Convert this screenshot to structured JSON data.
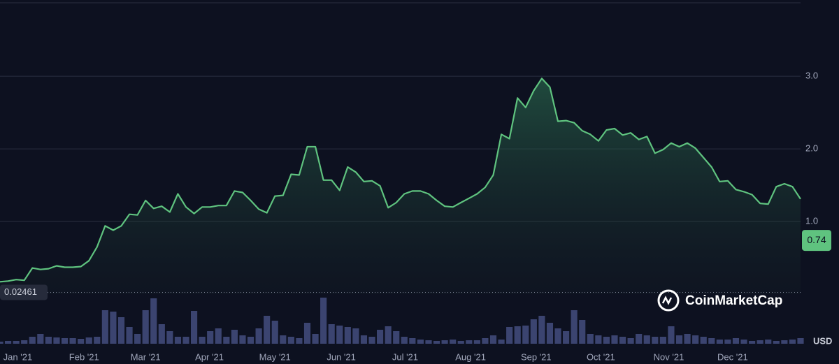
{
  "chart_data": {
    "type": "line",
    "x": [
      0,
      1,
      2,
      3,
      4,
      5,
      6,
      7,
      8,
      9,
      10,
      11,
      12,
      13,
      14,
      15,
      16,
      17,
      18,
      19,
      20,
      21,
      22,
      23,
      24,
      25,
      26,
      27,
      28,
      29,
      30,
      31,
      32,
      33,
      34,
      35,
      36,
      37,
      38,
      39,
      40,
      41,
      42,
      43,
      44,
      45,
      46,
      47,
      48,
      49,
      50,
      51,
      52,
      53,
      54,
      55,
      56,
      57,
      58,
      59,
      60,
      61,
      62,
      63,
      64,
      65,
      66,
      67,
      68,
      69,
      70,
      71,
      72,
      73,
      74,
      75,
      76,
      77,
      78,
      79,
      80,
      81,
      82,
      83,
      84,
      85,
      86,
      87,
      88,
      89,
      90,
      91,
      92,
      93,
      94,
      95,
      96,
      97,
      98,
      99
    ],
    "values": [
      0.17,
      0.18,
      0.2,
      0.19,
      0.36,
      0.34,
      0.35,
      0.39,
      0.37,
      0.37,
      0.38,
      0.46,
      0.65,
      0.94,
      0.88,
      0.94,
      1.1,
      1.09,
      1.29,
      1.18,
      1.21,
      1.13,
      1.38,
      1.2,
      1.11,
      1.2,
      1.2,
      1.22,
      1.22,
      1.42,
      1.4,
      1.29,
      1.17,
      1.12,
      1.35,
      1.36,
      1.65,
      1.64,
      2.03,
      2.03,
      1.57,
      1.57,
      1.43,
      1.75,
      1.68,
      1.55,
      1.56,
      1.49,
      1.19,
      1.26,
      1.38,
      1.42,
      1.42,
      1.38,
      1.29,
      1.21,
      1.2,
      1.26,
      1.32,
      1.38,
      1.47,
      1.64,
      2.2,
      2.14,
      2.7,
      2.57,
      2.8,
      2.97,
      2.85,
      2.38,
      2.39,
      2.36,
      2.25,
      2.2,
      2.11,
      2.26,
      2.28,
      2.19,
      2.22,
      2.13,
      2.17,
      1.94,
      1.99,
      2.08,
      2.03,
      2.08,
      2.01,
      1.88,
      1.75,
      1.55,
      1.56,
      1.44,
      1.41,
      1.37,
      1.25,
      1.24,
      1.48,
      1.52,
      1.48,
      1.31
    ],
    "volume": [
      3,
      4,
      4,
      5,
      10,
      14,
      10,
      9,
      8,
      8,
      7,
      9,
      10,
      48,
      46,
      38,
      24,
      14,
      48,
      65,
      28,
      18,
      10,
      10,
      47,
      10,
      18,
      22,
      10,
      20,
      12,
      10,
      22,
      40,
      33,
      12,
      10,
      8,
      30,
      14,
      66,
      28,
      26,
      24,
      22,
      12,
      10,
      20,
      25,
      18,
      10,
      8,
      6,
      5,
      4,
      5,
      6,
      4,
      5,
      5,
      8,
      12,
      6,
      24,
      25,
      26,
      35,
      40,
      30,
      22,
      18,
      48,
      34,
      14,
      12,
      10,
      12,
      10,
      8,
      14,
      12,
      10,
      10,
      25,
      12,
      14,
      12,
      10,
      8,
      6,
      6,
      8,
      6,
      4,
      5,
      6,
      4,
      5,
      6,
      8
    ],
    "volume_lim": [
      0,
      70
    ],
    "color": "#5fc37f",
    "volume_color": "#3b4470",
    "xlim": [
      0,
      99
    ],
    "ylim": [
      0,
      4.05
    ],
    "xticks": [
      {
        "value": 2.2,
        "label": "Jan '21"
      },
      {
        "value": 10.4,
        "label": "Feb '21"
      },
      {
        "value": 18,
        "label": "Mar '21"
      },
      {
        "value": 25.9,
        "label": "Apr '21"
      },
      {
        "value": 34,
        "label": "May '21"
      },
      {
        "value": 42.2,
        "label": "Jun '21"
      },
      {
        "value": 50.1,
        "label": "Jul '21"
      },
      {
        "value": 58.2,
        "label": "Aug '21"
      },
      {
        "value": 66.3,
        "label": "Sep '21"
      },
      {
        "value": 74.3,
        "label": "Oct '21"
      },
      {
        "value": 82.7,
        "label": "Nov '21"
      },
      {
        "value": 90.6,
        "label": "Dec '21"
      }
    ],
    "yticks": [
      {
        "value": 1,
        "label": "1.0"
      },
      {
        "value": 2,
        "label": "2.0"
      },
      {
        "value": 3,
        "label": "3.0"
      }
    ],
    "grid": true,
    "reference_line": 0.02461,
    "current_price": 0.74,
    "currency": "USD",
    "watermark": "CoinMarketCap"
  }
}
